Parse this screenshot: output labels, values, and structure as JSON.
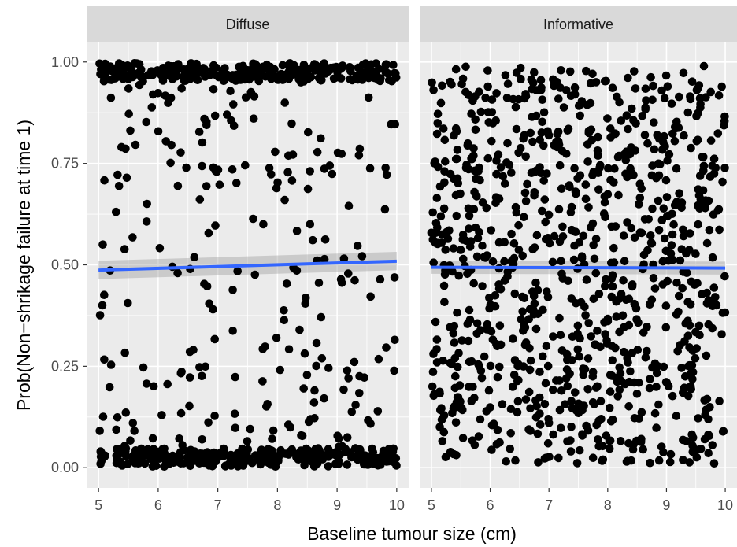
{
  "chart_data": {
    "type": "scatter",
    "xlabel": "Baseline tumour size (cm)",
    "ylabel": "Prob(Non−shrikage failure at time 1)",
    "xlim": [
      4.8,
      10.2
    ],
    "ylim": [
      -0.05,
      1.05
    ],
    "x_ticks": [
      "5",
      "6",
      "7",
      "8",
      "9",
      "10"
    ],
    "y_ticks": [
      "0.00",
      "0.25",
      "0.50",
      "0.75",
      "1.00"
    ],
    "grid": true,
    "legend": "none",
    "colors": {
      "points": "#000000",
      "smooth_line": "#3366ff",
      "ribbon": "#999999",
      "panel_bg": "#ebebeb",
      "strip_bg": "#d9d9d9",
      "grid": "#ffffff"
    },
    "panels": [
      {
        "strip": "Diffuse",
        "smooth": {
          "x": [
            5,
            10
          ],
          "y": [
            0.487,
            0.509
          ],
          "ci_lower": [
            0.465,
            0.487
          ],
          "ci_upper": [
            0.51,
            0.532
          ]
        },
        "points_summary": "approx. 800 points, strongly concentrated near 0 and 1 with a sparse middle",
        "n_points": 800
      },
      {
        "strip": "Informative",
        "smooth": {
          "x": [
            5,
            10
          ],
          "y": [
            0.494,
            0.492
          ],
          "ci_lower": [
            0.478,
            0.476
          ],
          "ci_upper": [
            0.51,
            0.508
          ]
        },
        "points_summary": "approx. 950 points spread roughly uniformly between 0.01 and 0.99",
        "n_points": 950
      }
    ]
  }
}
